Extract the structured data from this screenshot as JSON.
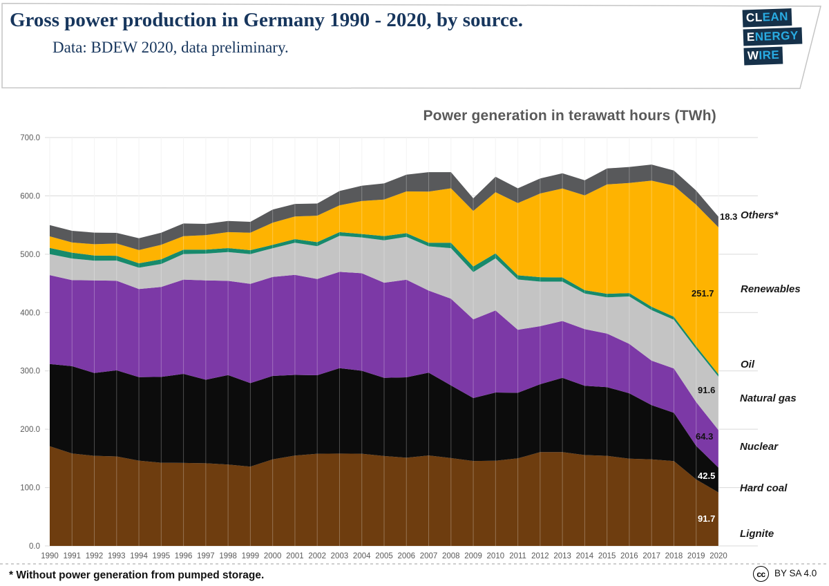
{
  "header": {
    "title": "Gross power production in Germany 1990 - 2020, by source.",
    "subtitle": "Data: BDEW 2020, data preliminary.",
    "logo": {
      "bg_color": "#16314a",
      "accent_color": "#29abe2",
      "rows": [
        {
          "white": "CL",
          "cyan": "EAN"
        },
        {
          "white": "E",
          "cyan": "NERGY"
        },
        {
          "white": "W",
          "cyan": "IRE"
        }
      ]
    }
  },
  "chart_title": "Power generation in terawatt hours (TWh)",
  "legend": {
    "items": [
      {
        "label": "Others*"
      },
      {
        "label": "Renewables"
      },
      {
        "label": "Oil"
      },
      {
        "label": "Natural gas"
      },
      {
        "label": "Nuclear"
      },
      {
        "label": "Hard coal"
      },
      {
        "label": "Lignite"
      }
    ]
  },
  "value_labels": {
    "others": "18.3",
    "renewables": "251.7",
    "natural_gas": "91.6",
    "nuclear": "64.3",
    "hard_coal": "42.5",
    "lignite": "91.7"
  },
  "footer": {
    "footnote": "* Without power generation from pumped storage.",
    "cc_glyph": "cc",
    "license": "BY SA 4.0"
  },
  "chart_data": {
    "type": "area",
    "stacked": true,
    "title": "Power generation in terawatt hours (TWh)",
    "xlabel": "",
    "ylabel": "TWh",
    "ylim": [
      0,
      700
    ],
    "ytick_step": 100,
    "grid": true,
    "legend_position": "right",
    "x": [
      1990,
      1991,
      1992,
      1993,
      1994,
      1995,
      1996,
      1997,
      1998,
      1999,
      2000,
      2001,
      2002,
      2003,
      2004,
      2005,
      2006,
      2007,
      2008,
      2009,
      2010,
      2011,
      2012,
      2013,
      2014,
      2015,
      2016,
      2017,
      2018,
      2019,
      2020
    ],
    "series": [
      {
        "name": "Lignite",
        "color": "#6e3d0f",
        "values": [
          170.9,
          158.3,
          154.5,
          153.4,
          146.1,
          142.6,
          142.2,
          141.7,
          139.4,
          136.0,
          148.3,
          154.8,
          158.0,
          158.2,
          158.0,
          154.1,
          151.1,
          155.1,
          150.6,
          145.6,
          145.9,
          150.1,
          160.7,
          160.9,
          155.8,
          154.5,
          149.5,
          148.4,
          145.5,
          114.0,
          91.7
        ]
      },
      {
        "name": "Hard coal",
        "color": "#0c0c0c",
        "values": [
          140.8,
          149.8,
          141.9,
          147.6,
          143.1,
          147.1,
          152.7,
          143.1,
          153.4,
          143.1,
          143.1,
          138.4,
          134.6,
          146.5,
          142.3,
          134.1,
          137.9,
          142.0,
          124.6,
          107.9,
          117.0,
          112.4,
          116.4,
          127.3,
          118.6,
          117.7,
          112.2,
          92.9,
          82.6,
          57.5,
          42.5
        ]
      },
      {
        "name": "Nuclear",
        "color": "#7c39a6",
        "values": [
          152.5,
          147.4,
          158.8,
          153.5,
          151.2,
          154.1,
          161.6,
          170.3,
          161.6,
          170.0,
          169.6,
          171.3,
          164.8,
          165.1,
          167.1,
          163.0,
          167.4,
          140.5,
          148.5,
          134.9,
          140.6,
          108.0,
          99.5,
          97.3,
          97.1,
          91.8,
          84.6,
          76.3,
          76.0,
          75.1,
          64.3
        ]
      },
      {
        "name": "Natural gas",
        "color": "#c4c4c4",
        "values": [
          35.9,
          37.1,
          33.7,
          34.5,
          36.5,
          39.5,
          43.8,
          45.9,
          49.2,
          51.1,
          49.2,
          55.2,
          56.3,
          61.6,
          61.3,
          72.7,
          73.4,
          75.9,
          86.7,
          80.9,
          89.3,
          86.1,
          76.4,
          67.5,
          61.1,
          62.0,
          81.3,
          86.7,
          83.4,
          91.0,
          91.6
        ]
      },
      {
        "name": "Oil",
        "color": "#178a6c",
        "values": [
          10.8,
          10.1,
          8.9,
          8.4,
          7.5,
          8.0,
          7.6,
          6.8,
          6.9,
          6.7,
          5.9,
          6.2,
          7.0,
          6.5,
          6.0,
          7.2,
          6.3,
          6.2,
          9.2,
          9.7,
          8.7,
          7.2,
          7.6,
          7.2,
          5.7,
          6.2,
          5.8,
          5.6,
          5.2,
          4.7,
          4.2
        ]
      },
      {
        "name": "Renewables",
        "color": "#feb301",
        "values": [
          19.7,
          17.4,
          19.3,
          20.9,
          22.6,
          24.7,
          23.0,
          25.0,
          27.3,
          29.9,
          37.9,
          38.8,
          45.3,
          45.9,
          56.4,
          62.5,
          71.5,
          87.6,
          93.3,
          95.2,
          104.8,
          123.8,
          143.5,
          152.4,
          162.5,
          187.4,
          188.8,
          216.2,
          224.8,
          242.4,
          251.7
        ]
      },
      {
        "name": "Others*",
        "color": "#58595b",
        "values": [
          19.3,
          20.0,
          19.9,
          18.2,
          20.3,
          20.9,
          21.7,
          19.2,
          19.1,
          18.7,
          22.6,
          21.5,
          20.9,
          24.5,
          26.3,
          27.8,
          28.7,
          33.4,
          27.8,
          21.6,
          26.6,
          25.4,
          25.7,
          26.2,
          25.9,
          27.3,
          27.4,
          27.6,
          26.0,
          24.3,
          18.3
        ]
      }
    ]
  }
}
